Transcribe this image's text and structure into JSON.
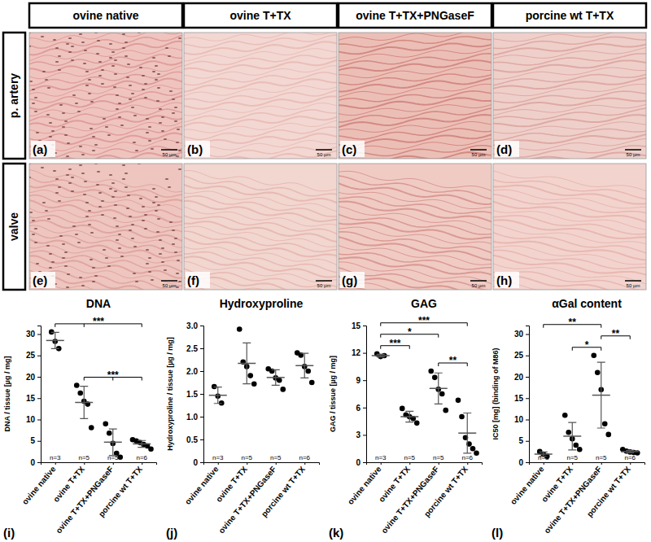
{
  "figure": {
    "column_headers": [
      "ovine native",
      "ovine T+TX",
      "ovine T+TX+PNGaseF",
      "porcine wt T+TX"
    ],
    "row_labels": [
      "p. artery",
      "valve"
    ],
    "panel_labels": [
      [
        "(a)",
        "(b)",
        "(c)",
        "(d)"
      ],
      [
        "(e)",
        "(f)",
        "(g)",
        "(h)"
      ]
    ],
    "scale_bar": "50 µm"
  },
  "chart_data": [
    {
      "type": "scatter",
      "title": "DNA",
      "ylabel": "DNA / tissue [µg / mg]",
      "panel": "(i)",
      "color": "#000000",
      "categories": [
        "ovine native",
        "ovine T+TX",
        "ovine T+TX+PNGaseF",
        "porcine wt T+TX"
      ],
      "n_labels": [
        "n=3",
        "n=5",
        "n=5",
        "n=6"
      ],
      "points": [
        [
          30.5,
          28.3,
          26.6
        ],
        [
          18.0,
          16.2,
          14.3,
          13.6,
          8.1
        ],
        [
          9.0,
          6.8,
          4.4,
          2.1,
          1.2
        ],
        [
          5.3,
          5.0,
          4.6,
          4.2,
          3.8,
          3.1
        ]
      ],
      "means": [
        28.5,
        14.0,
        4.7,
        4.3
      ],
      "sd": [
        1.9,
        3.8,
        3.1,
        0.8
      ],
      "ylim": [
        0,
        32
      ],
      "yticks": [
        0,
        5,
        10,
        15,
        20,
        25,
        30
      ],
      "significance": [
        {
          "from": 1,
          "to": [
            2,
            3
          ],
          "label": "***"
        },
        {
          "from": 0,
          "to": [
            1,
            3
          ],
          "label": "***"
        }
      ]
    },
    {
      "type": "scatter",
      "title": "Hydroxyproline",
      "ylabel": "Hydroxyproline / tissue [µg / mg]",
      "panel": "(j)",
      "color": "#000000",
      "categories": [
        "ovine native",
        "ovine T+TX",
        "ovine T+TX+PNGaseF",
        "porcine wt T+TX"
      ],
      "n_labels": [
        "n=3",
        "n=5",
        "n=5",
        "n=6"
      ],
      "points": [
        [
          1.66,
          1.45,
          1.3
        ],
        [
          2.92,
          2.2,
          2.1,
          1.9,
          1.72
        ],
        [
          2.05,
          2.0,
          1.85,
          1.8,
          1.6
        ],
        [
          2.4,
          2.35,
          2.1,
          2.0,
          1.75
        ]
      ],
      "means": [
        1.47,
        2.17,
        1.86,
        2.12
      ],
      "sd": [
        0.18,
        0.45,
        0.17,
        0.27
      ],
      "ylim": [
        0,
        3
      ],
      "yticks": [
        0,
        0.5,
        {
          "value": 1,
          "label": "1.0"
        },
        1.5,
        {
          "value": 2,
          "label": "2.0"
        },
        2.5,
        {
          "value": 3,
          "label": "3.0"
        }
      ],
      "significance": []
    },
    {
      "type": "scatter",
      "title": "GAG",
      "ylabel": "GAG / tissue [µg / mg]",
      "panel": "(k)",
      "color": "#000000",
      "categories": [
        "ovine native",
        "ovine T+TX",
        "ovine T+TX+PNGaseF",
        "porcine wt T+TX"
      ],
      "n_labels": [
        "n=3",
        "n=5",
        "n=5",
        "n=6"
      ],
      "points": [
        [
          11.9,
          11.6,
          11.7
        ],
        [
          5.9,
          5.2,
          5.0,
          4.8,
          4.3
        ],
        [
          10.0,
          9.3,
          8.0,
          7.5,
          5.7
        ],
        [
          6.8,
          5.0,
          2.7,
          2.0,
          1.5,
          1.0
        ]
      ],
      "means": [
        11.7,
        5.0,
        8.1,
        3.2
      ],
      "sd": [
        0.15,
        0.6,
        1.7,
        2.2
      ],
      "ylim": [
        0,
        15
      ],
      "yticks": [
        0,
        3,
        6,
        9,
        12,
        15
      ],
      "significance": [
        {
          "from": 0,
          "to": [
            1
          ],
          "label": "***"
        },
        {
          "from": 2,
          "to": [
            3
          ],
          "label": "**"
        },
        {
          "from": 0,
          "to": [
            2
          ],
          "label": "*"
        },
        {
          "from": 0,
          "to": [
            3
          ],
          "label": "***"
        }
      ]
    },
    {
      "type": "scatter",
      "title": "αGal content",
      "ylabel": "IC50 [mg] (binding of M86)",
      "panel": "(l)",
      "color": "#000000",
      "categories": [
        "ovine native",
        "ovine T+TX",
        "ovine T+TX+PNGaseF",
        "porcine wt T+TX"
      ],
      "n_labels": [
        "n=3",
        "n=5",
        "n=5",
        "n=6"
      ],
      "points": [
        [
          2.5,
          1.9,
          1.4
        ],
        [
          11.0,
          7.0,
          5.5,
          4.0,
          3.0
        ],
        [
          25.0,
          21.0,
          17.0,
          9.0,
          6.5
        ],
        [
          3.0,
          2.6,
          2.4,
          2.3,
          2.2
        ]
      ],
      "means": [
        1.9,
        6.1,
        15.7,
        2.5
      ],
      "sd": [
        0.5,
        3.2,
        7.7,
        0.3
      ],
      "ylim": [
        0,
        32
      ],
      "yticks": [
        0,
        5,
        10,
        15,
        20,
        25,
        30
      ],
      "significance": [
        {
          "from": 1,
          "to": [
            2
          ],
          "label": "*"
        },
        {
          "from": 2,
          "to": [
            3
          ],
          "label": "**"
        },
        {
          "from": 0,
          "to": [
            2
          ],
          "label": "**"
        }
      ]
    }
  ]
}
